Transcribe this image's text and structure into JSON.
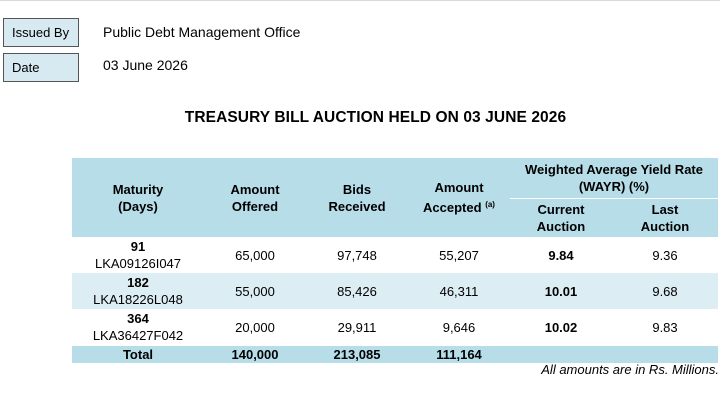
{
  "meta": {
    "issued_by_label": "Issued By",
    "issued_by_value": "Public Debt Management Office",
    "date_label": "Date",
    "date_value": "03 June 2026"
  },
  "title": "TREASURY BILL AUCTION HELD ON 03 JUNE 2026",
  "table": {
    "headers": {
      "maturity": "Maturity",
      "maturity_unit": "(Days)",
      "offered_1": "Amount",
      "offered_2": "Offered",
      "bids_1": "Bids",
      "bids_2": "Received",
      "accepted_1": "Amount",
      "accepted_2": "Accepted",
      "accepted_note": "(a)",
      "wayr_1": "Weighted Average Yield Rate",
      "wayr_2": "(WAYR) (%)",
      "current_1": "Current",
      "current_2": "Auction",
      "last_1": "Last",
      "last_2": "Auction"
    },
    "rows": [
      {
        "days": "91",
        "isin": "LKA09126I047",
        "offered": "65,000",
        "bids": "97,748",
        "accepted": "55,207",
        "current": "9.84",
        "last": "9.36"
      },
      {
        "days": "182",
        "isin": "LKA18226L048",
        "offered": "55,000",
        "bids": "85,426",
        "accepted": "46,311",
        "current": "10.01",
        "last": "9.68"
      },
      {
        "days": "364",
        "isin": "LKA36427F042",
        "offered": "20,000",
        "bids": "29,911",
        "accepted": "9,646",
        "current": "10.02",
        "last": "9.83"
      }
    ],
    "total": {
      "label": "Total",
      "offered": "140,000",
      "bids": "213,085",
      "accepted": "111,164"
    }
  },
  "note": "All amounts are in Rs. Millions."
}
